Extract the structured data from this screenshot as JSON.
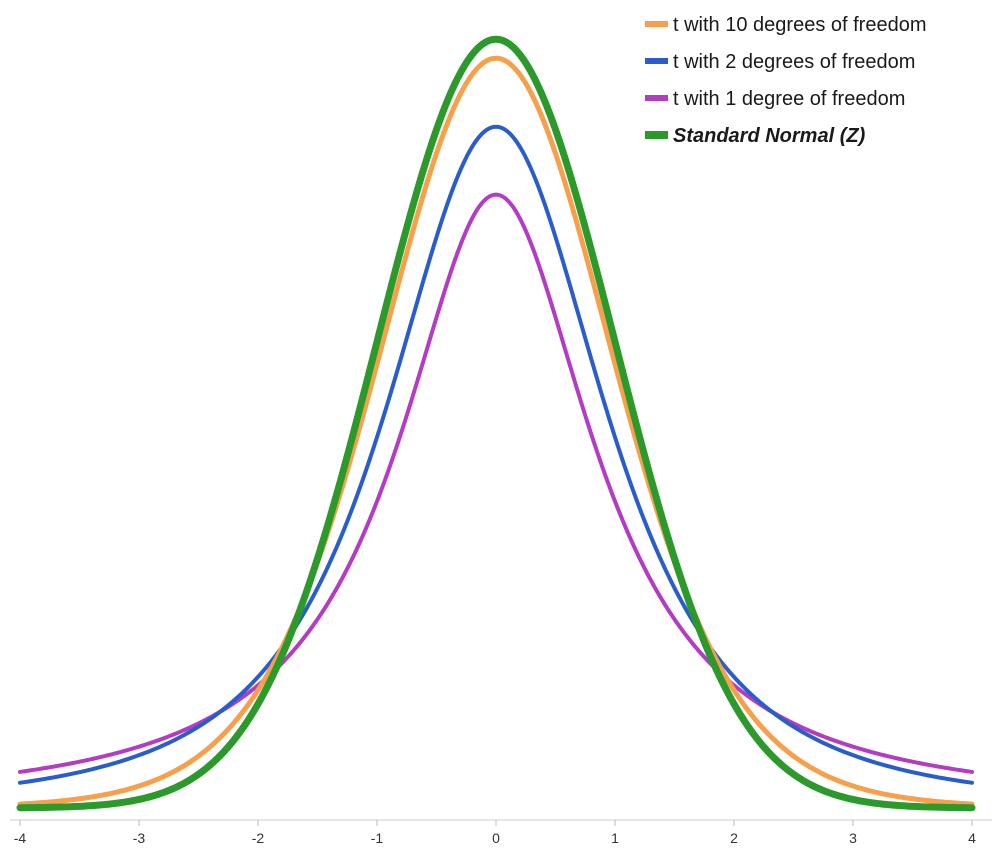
{
  "chart_data": {
    "type": "line",
    "title": "",
    "xlabel": "",
    "ylabel": "",
    "xlim": [
      -4,
      4
    ],
    "ylim": [
      0,
      0.4
    ],
    "grid": false,
    "legend_position": "top-right",
    "x_ticks": [
      "-4",
      "-3",
      "-2",
      "-1",
      "0",
      "1",
      "2",
      "3",
      "4"
    ],
    "series": [
      {
        "name": "t with 10 degrees of freedom",
        "distribution": "student-t",
        "df": 10,
        "color": "#f7a04b",
        "emphasis": false
      },
      {
        "name": "t with 2 degrees of freedom",
        "distribution": "student-t",
        "df": 2,
        "color": "#2a5dcc",
        "emphasis": false
      },
      {
        "name": "t with 1 degree of freedom",
        "distribution": "student-t",
        "df": 1,
        "color": "#b43cc4",
        "emphasis": false
      },
      {
        "name": "Standard Normal (Z)",
        "distribution": "normal",
        "df": null,
        "color": "#2b9a2b",
        "emphasis": true
      }
    ]
  }
}
